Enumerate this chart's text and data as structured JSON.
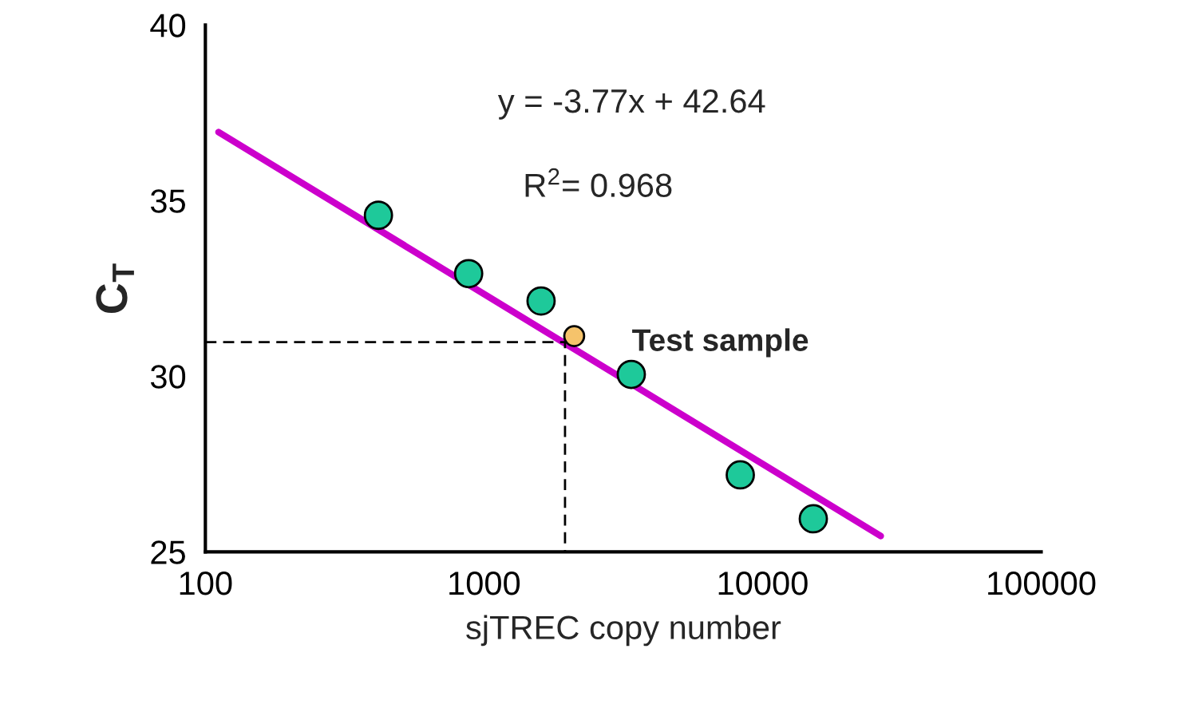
{
  "chart_data": {
    "type": "scatter",
    "xlabel": "sjTREC copy number",
    "ylabel": "C$_{T}$",
    "log": "x",
    "xlim": [
      100,
      100000
    ],
    "xticks": [
      100,
      1000,
      10000,
      100000
    ],
    "ylim": [
      25,
      40
    ],
    "yticks": [
      25,
      30,
      35,
      40
    ],
    "grid": false,
    "marker": "circle",
    "series": [
      {
        "type": "line",
        "color": "#cc00cc",
        "x": [
          111.5,
          26550
        ],
        "values": [
          36.95,
          25.45
        ],
        "line_style": "solid",
        "marker": "none"
      },
      {
        "type": "line",
        "color": "#000000",
        "x": [
          100,
          1954,
          1954
        ],
        "values": [
          30.97,
          30.97,
          25
        ],
        "line_style": "dashed",
        "marker": "none"
      },
      {
        "color": "#1ec99a",
        "x": [
          418,
          881,
          1603,
          3379,
          8318,
          15210
        ],
        "values": [
          34.58,
          32.92,
          32.14,
          30.05,
          27.19,
          25.94
        ]
      },
      {
        "color": "#f5c36b",
        "x": [
          2108
        ],
        "values": [
          31.14
        ]
      }
    ],
    "annotations": [
      "y = -3.77x + 42.64",
      "R$^{2}$= 0.968",
      {
        "text": "Test sample",
        "x": 2108,
        "y": 31.14
      }
    ]
  }
}
